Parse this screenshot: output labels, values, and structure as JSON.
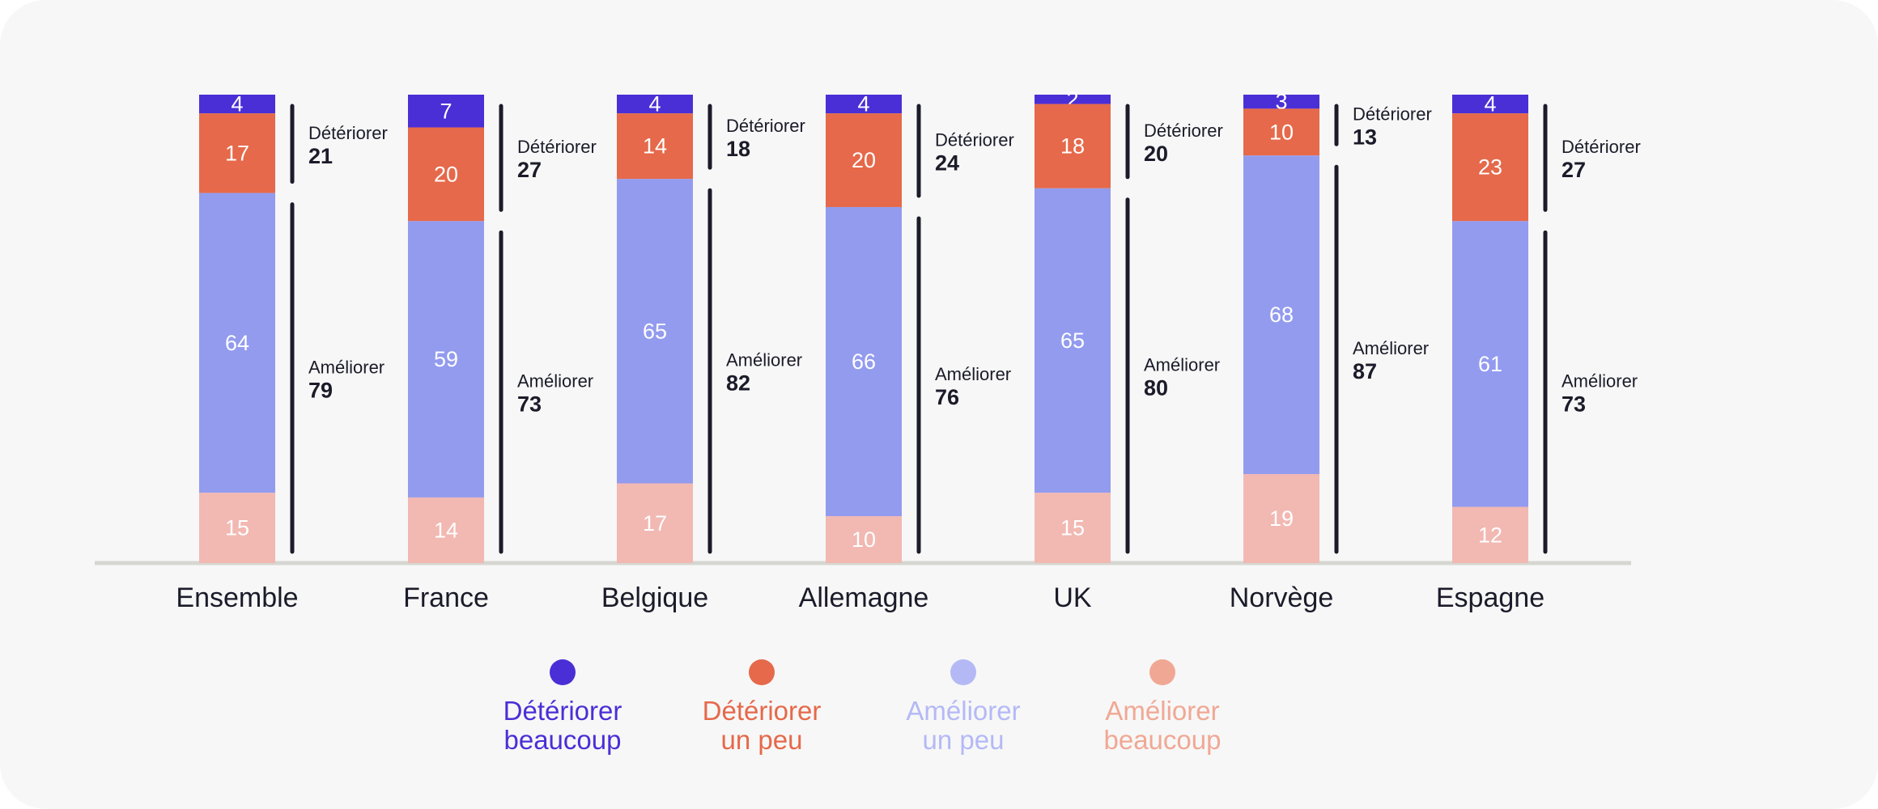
{
  "chart_data": {
    "type": "bar",
    "stacked": true,
    "orientation": "vertical",
    "categories": [
      "Ensemble",
      "France",
      "Belgique",
      "Allemagne",
      "UK",
      "Norvège",
      "Espagne"
    ],
    "series": [
      {
        "name": "Détériorer beaucoup",
        "name_lines": [
          "Détériorer",
          "beaucoup"
        ],
        "color": "#4a2fd6",
        "values": [
          4,
          7,
          4,
          4,
          2,
          3,
          4
        ]
      },
      {
        "name": "Détériorer un peu",
        "name_lines": [
          "Détériorer",
          "un peu"
        ],
        "color": "#e5694a",
        "values": [
          17,
          20,
          14,
          20,
          18,
          10,
          23
        ]
      },
      {
        "name": "Améliorer un peu",
        "name_lines": [
          "Améliorer",
          "un peu"
        ],
        "color": "#939bef",
        "values": [
          64,
          59,
          65,
          66,
          65,
          68,
          61
        ]
      },
      {
        "name": "Améliorer beaucoup",
        "name_lines": [
          "Améliorer",
          "beaucoup"
        ],
        "color": "#f2b8b2",
        "values": [
          15,
          14,
          17,
          10,
          15,
          19,
          12
        ]
      }
    ],
    "legend_colors": [
      "#4a2fd6",
      "#e5694a",
      "#b4b9f6",
      "#f0a894"
    ],
    "groups": {
      "deteriorer": {
        "label": "Détériorer",
        "totals": [
          21,
          27,
          18,
          24,
          20,
          13,
          27
        ]
      },
      "ameliorer": {
        "label": "Améliorer",
        "totals": [
          79,
          73,
          82,
          76,
          80,
          87,
          73
        ]
      }
    },
    "ylim": [
      0,
      100
    ],
    "legend_position": "bottom-center",
    "grid": false,
    "title": "",
    "xlabel": "",
    "ylabel": ""
  }
}
